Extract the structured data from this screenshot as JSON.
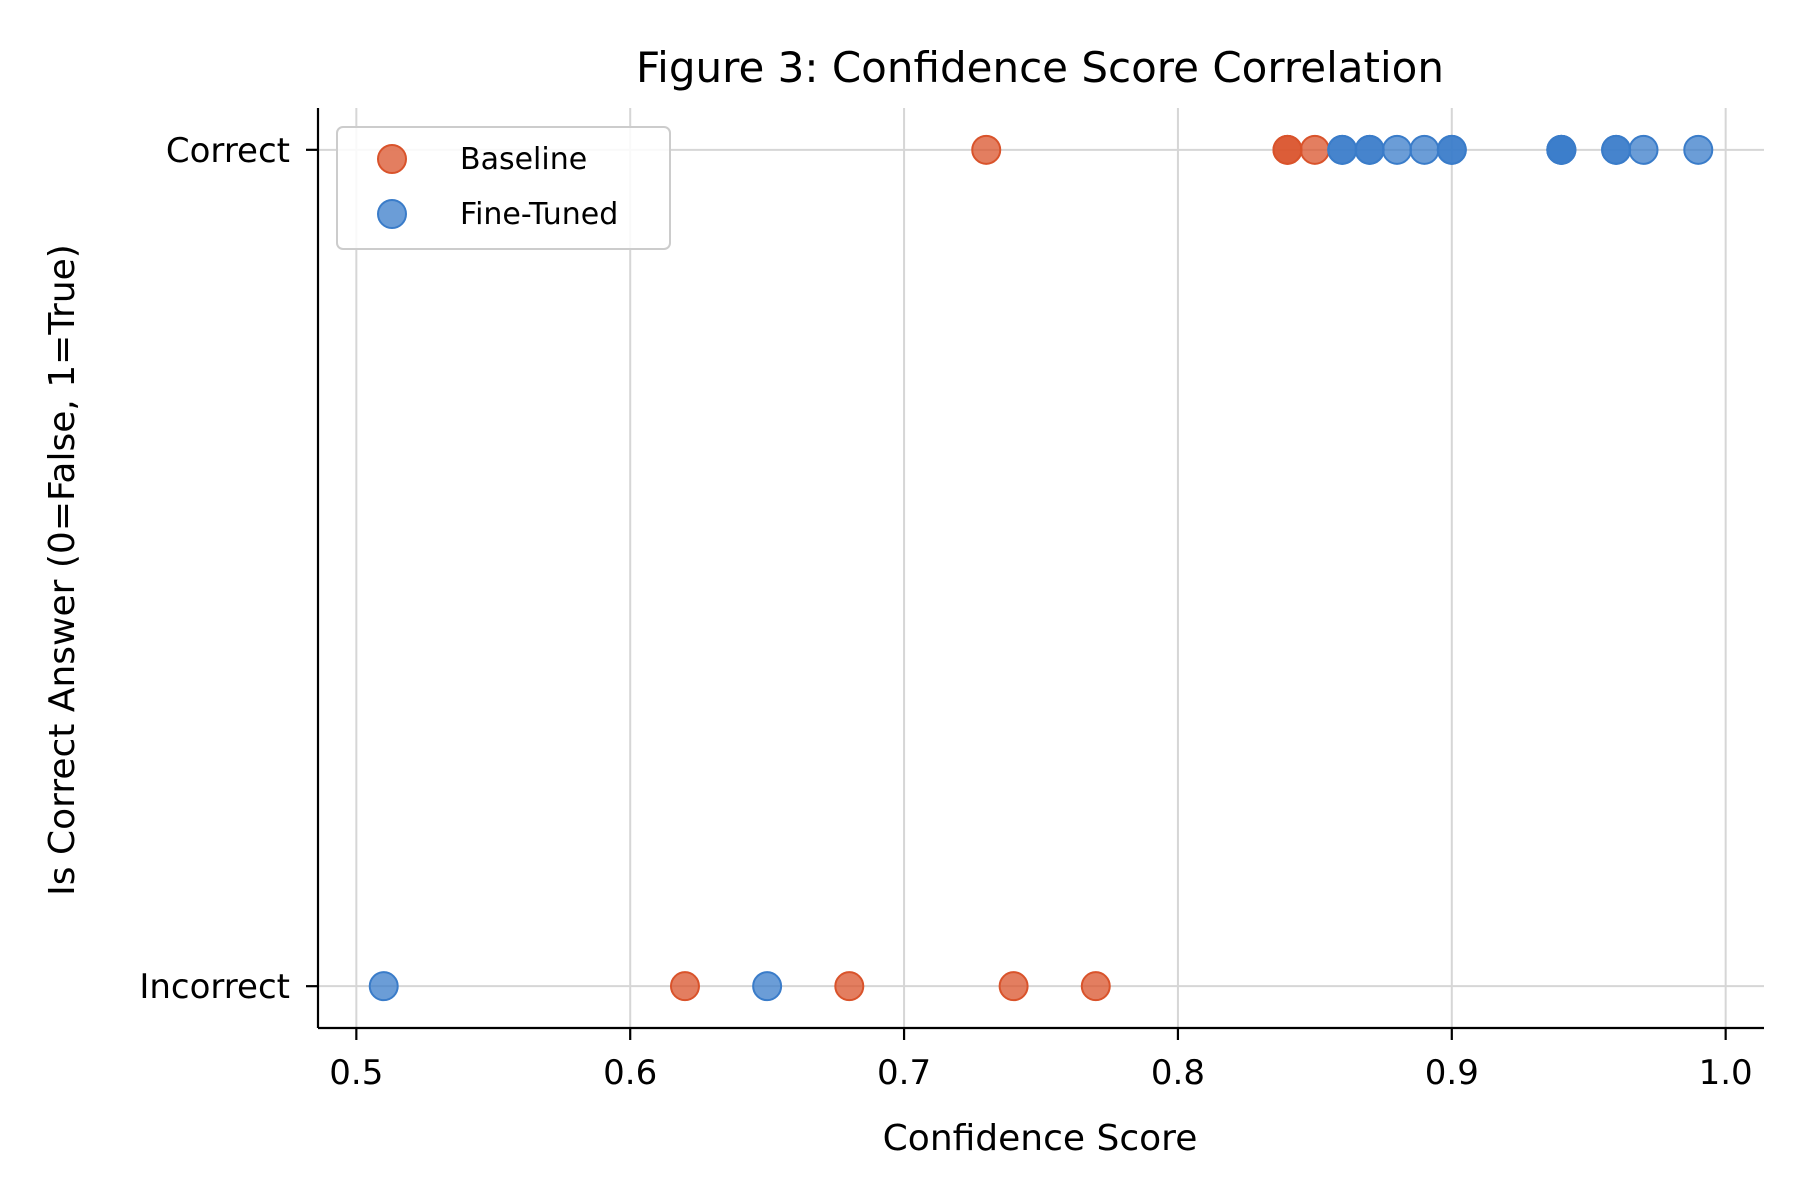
{
  "chart_data": {
    "type": "scatter",
    "title": "Figure 3: Confidence Score Correlation",
    "xlabel": "Confidence Score",
    "ylabel": "Is Correct Answer (0=False, 1=True)",
    "xlim": [
      0.486,
      1.014
    ],
    "ylim": [
      -0.05,
      1.05
    ],
    "xticks": [
      0.5,
      0.6,
      0.7,
      0.8,
      0.9,
      1.0
    ],
    "xtick_labels": [
      "0.5",
      "0.6",
      "0.7",
      "0.8",
      "0.9",
      "1.0"
    ],
    "yticks": [
      0,
      1
    ],
    "ytick_labels": [
      "Incorrect",
      "Correct"
    ],
    "grid": true,
    "legend_position": "top-left",
    "series": [
      {
        "name": "Baseline",
        "color": "#d9532b",
        "points": [
          {
            "x": 0.73,
            "y": 1
          },
          {
            "x": 0.84,
            "y": 1
          },
          {
            "x": 0.84,
            "y": 1
          },
          {
            "x": 0.85,
            "y": 1
          },
          {
            "x": 0.62,
            "y": 0
          },
          {
            "x": 0.68,
            "y": 0
          },
          {
            "x": 0.74,
            "y": 0
          },
          {
            "x": 0.77,
            "y": 0
          }
        ]
      },
      {
        "name": "Fine-Tuned",
        "color": "#3a7cc9",
        "points": [
          {
            "x": 0.86,
            "y": 1
          },
          {
            "x": 0.86,
            "y": 1
          },
          {
            "x": 0.87,
            "y": 1
          },
          {
            "x": 0.87,
            "y": 1
          },
          {
            "x": 0.88,
            "y": 1
          },
          {
            "x": 0.89,
            "y": 1
          },
          {
            "x": 0.9,
            "y": 1
          },
          {
            "x": 0.9,
            "y": 1
          },
          {
            "x": 0.94,
            "y": 1
          },
          {
            "x": 0.94,
            "y": 1
          },
          {
            "x": 0.94,
            "y": 1
          },
          {
            "x": 0.96,
            "y": 1
          },
          {
            "x": 0.96,
            "y": 1
          },
          {
            "x": 0.97,
            "y": 1
          },
          {
            "x": 0.99,
            "y": 1
          },
          {
            "x": 0.51,
            "y": 0
          },
          {
            "x": 0.65,
            "y": 0
          }
        ]
      }
    ]
  }
}
